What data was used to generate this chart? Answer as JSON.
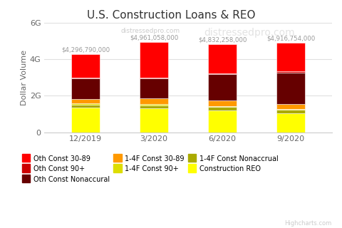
{
  "title": "U.S. Construction Loans & REO",
  "watermark1": "distressedpro.com",
  "watermark2": "distressedpro.com",
  "ylabel": "Dollar Volume",
  "categories": [
    "12/2019",
    "3/2020",
    "6/2020",
    "9/2020"
  ],
  "totals": [
    "$4,296,790,000",
    "$4,961,058,000",
    "$4,832,258,000",
    "$4,916,754,000"
  ],
  "totals_raw": [
    4296790000,
    4961058000,
    4832258000,
    4916754000
  ],
  "series": [
    {
      "name": "Construction REO",
      "color": "#ffff00",
      "values": [
        1350000000,
        1320000000,
        1200000000,
        1050000000
      ]
    },
    {
      "name": "1-4F Const Nonaccrual",
      "color": "#aaaa00",
      "values": [
        175000000,
        165000000,
        185000000,
        175000000
      ]
    },
    {
      "name": "1-4F Const 90+",
      "color": "#dddd00",
      "values": [
        50000000,
        50000000,
        55000000,
        45000000
      ]
    },
    {
      "name": "1-4F Const 30-89",
      "color": "#ff9900",
      "values": [
        260000000,
        315000000,
        310000000,
        290000000
      ]
    },
    {
      "name": "Oth Const Nonaccural",
      "color": "#660000",
      "values": [
        1100000000,
        1090000000,
        1420000000,
        1720000000
      ]
    },
    {
      "name": "Oth Const 90+",
      "color": "#cc0000",
      "values": [
        45000000,
        45000000,
        55000000,
        50000000
      ]
    },
    {
      "name": "Oth Const 30-89",
      "color": "#ff0000",
      "values": [
        1316790000,
        1976058000,
        1607258000,
        1586754000
      ]
    }
  ],
  "ylim": [
    0,
    6000000000
  ],
  "yticks": [
    0,
    2000000000,
    4000000000,
    6000000000
  ],
  "ytick_labels": [
    "0",
    "2G",
    "4G",
    "6G"
  ],
  "background_color": "#ffffff",
  "grid_color": "#e0e0e0",
  "title_fontsize": 11,
  "label_fontsize": 8,
  "legend_fontsize": 7,
  "highcharts_text": "Highcharts.com",
  "legend_order": [
    6,
    5,
    4,
    3,
    2,
    1,
    0
  ]
}
